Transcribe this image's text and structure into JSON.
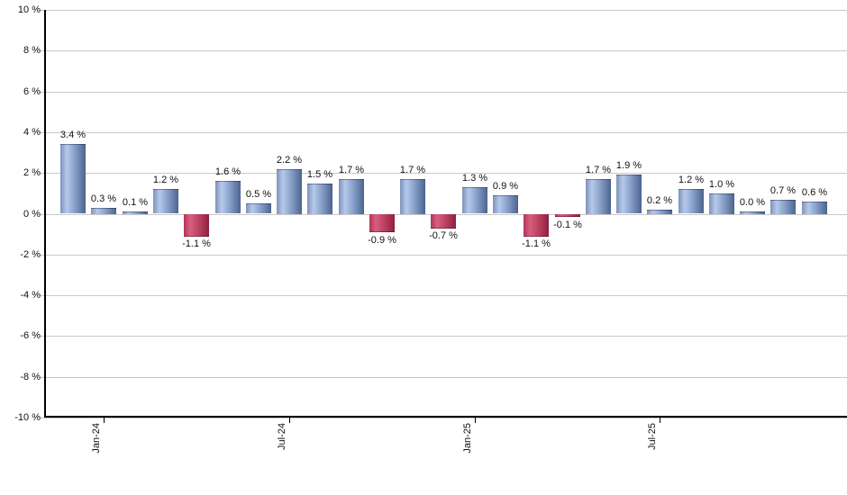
{
  "chart_data": {
    "type": "bar",
    "description": "Monthly total return percentages bar chart",
    "unit": "%",
    "values": [
      3.4,
      0.3,
      0.1,
      1.2,
      -1.1,
      1.6,
      0.5,
      2.2,
      1.5,
      1.7,
      -0.9,
      1.7,
      -0.7,
      1.3,
      0.9,
      -1.1,
      -0.1,
      1.7,
      1.9,
      0.2,
      1.2,
      1.0,
      0.0,
      0.7,
      0.6
    ],
    "value_labels": [
      "3.4 %",
      "0.3 %",
      "0.1 %",
      "1.2 %",
      "-1.1 %",
      "1.6 %",
      "0.5 %",
      "2.2 %",
      "1.5 %",
      "1.7 %",
      "-0.9 %",
      "1.7 %",
      "-0.7 %",
      "1.3 %",
      "0.9 %",
      "-1.1 %",
      "-0.1 %",
      "1.7 %",
      "1.9 %",
      "0.2 %",
      "1.2 %",
      "1.0 %",
      "0.0 %",
      "0.7 %",
      "0.6 %"
    ],
    "x_ticks": [
      {
        "index": 1,
        "label": "Jan-24"
      },
      {
        "index": 7,
        "label": "Jul-24"
      },
      {
        "index": 13,
        "label": "Jan-25"
      },
      {
        "index": 19,
        "label": "Jul-25"
      }
    ],
    "y_ticks": [
      {
        "value": 10,
        "label": "10 %"
      },
      {
        "value": 8,
        "label": "8 %"
      },
      {
        "value": 6,
        "label": "6 %"
      },
      {
        "value": 4,
        "label": "4 %"
      },
      {
        "value": 2,
        "label": "2 %"
      },
      {
        "value": 0,
        "label": "0 %"
      },
      {
        "value": -2,
        "label": "-2 %"
      },
      {
        "value": -4,
        "label": "-4 %"
      },
      {
        "value": -6,
        "label": "-6 %"
      },
      {
        "value": -8,
        "label": "-8 %"
      },
      {
        "value": -10,
        "label": "-10 %"
      }
    ],
    "ylim": [
      -10,
      10
    ],
    "grid": true,
    "legend": null,
    "colors": {
      "positive_left": "#7d92bb",
      "positive_light": "#b6c9ea",
      "positive_mid": "#8aa3cc",
      "positive_right": "#4c648e",
      "negative_left": "#b5315a",
      "negative_light": "#d6607e",
      "negative_mid": "#c04565",
      "negative_right": "#8e2040",
      "gridline": "#c9c9c9",
      "axis": "#000000",
      "text": "#111111"
    }
  }
}
